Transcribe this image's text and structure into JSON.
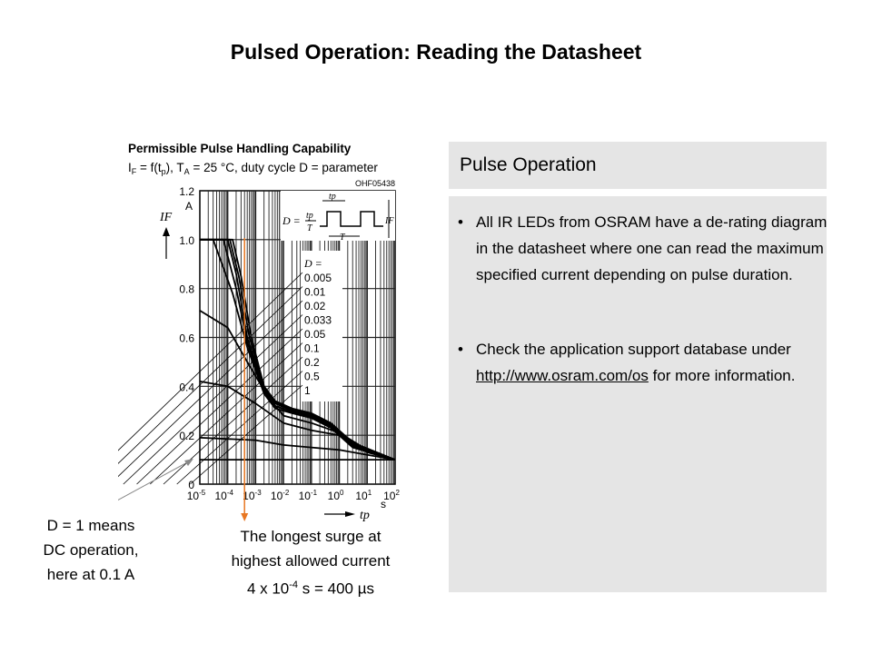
{
  "slide_title": "Pulsed Operation: Reading the Datasheet",
  "chart_data": {
    "type": "line",
    "title": "Permissible Pulse Handling Capability",
    "subtitle": "IF = f(tp), TA = 25 °C, duty cycle D = parameter",
    "subtitle_parts": {
      "i": "I",
      "f": "F",
      "eq": " = f(t",
      "p": "p",
      "mid": "), T",
      "a": "A",
      "rest": " = 25 °C, duty cycle D = parameter"
    },
    "code": "OHF05438",
    "ylabel": "IF",
    "yunit": "A",
    "xlabel": "tp",
    "xunit": "s",
    "xscale": "log",
    "xlim": [
      1e-05,
      100
    ],
    "ylim": [
      0,
      1.2
    ],
    "yticks": [
      "0",
      "0.2",
      "0.4",
      "0.6",
      "0.8",
      "1.0",
      "1.2"
    ],
    "xticks": [
      {
        "base": "10",
        "exp": "-5"
      },
      {
        "base": "10",
        "exp": "-4"
      },
      {
        "base": "10",
        "exp": "-3"
      },
      {
        "base": "10",
        "exp": "-2"
      },
      {
        "base": "10",
        "exp": "-1"
      },
      {
        "base": "10",
        "exp": "0"
      },
      {
        "base": "10",
        "exp": "1"
      },
      {
        "base": "10",
        "exp": "2"
      }
    ],
    "legend_title": "D =",
    "inset_formula": {
      "d": "D =",
      "num": "tp",
      "den": "T",
      "tp": "tp",
      "t": "T",
      "if": "IF"
    },
    "series": [
      {
        "name": "0.005",
        "points": [
          [
            1e-05,
            1.0
          ],
          [
            0.00015,
            1.0
          ],
          [
            0.0003,
            0.85
          ],
          [
            0.0007,
            0.6
          ],
          [
            0.002,
            0.4
          ],
          [
            0.005,
            0.34
          ],
          [
            0.02,
            0.31
          ],
          [
            0.1,
            0.29
          ],
          [
            0.5,
            0.25
          ],
          [
            3,
            0.17
          ],
          [
            100,
            0.1
          ]
        ]
      },
      {
        "name": "0.01",
        "points": [
          [
            1e-05,
            1.0
          ],
          [
            0.00012,
            1.0
          ],
          [
            0.00025,
            0.85
          ],
          [
            0.0006,
            0.6
          ],
          [
            0.002,
            0.4
          ],
          [
            0.005,
            0.335
          ],
          [
            0.02,
            0.305
          ],
          [
            0.1,
            0.285
          ],
          [
            0.5,
            0.245
          ],
          [
            3,
            0.165
          ],
          [
            100,
            0.1
          ]
        ]
      },
      {
        "name": "0.02",
        "points": [
          [
            1e-05,
            1.0
          ],
          [
            0.0001,
            1.0
          ],
          [
            0.0002,
            0.86
          ],
          [
            0.0005,
            0.6
          ],
          [
            0.002,
            0.39
          ],
          [
            0.005,
            0.33
          ],
          [
            0.02,
            0.3
          ],
          [
            0.1,
            0.28
          ],
          [
            0.5,
            0.24
          ],
          [
            3,
            0.16
          ],
          [
            100,
            0.1
          ]
        ]
      },
      {
        "name": "0.033",
        "points": [
          [
            1e-05,
            1.0
          ],
          [
            7e-05,
            1.0
          ],
          [
            0.0002,
            0.8
          ],
          [
            0.0005,
            0.58
          ],
          [
            0.002,
            0.38
          ],
          [
            0.005,
            0.32
          ],
          [
            0.02,
            0.295
          ],
          [
            0.1,
            0.275
          ],
          [
            0.5,
            0.235
          ],
          [
            3,
            0.155
          ],
          [
            100,
            0.1
          ]
        ]
      },
      {
        "name": "0.05",
        "points": [
          [
            1e-05,
            1.0
          ],
          [
            3e-05,
            1.0
          ],
          [
            0.00015,
            0.78
          ],
          [
            0.0005,
            0.56
          ],
          [
            0.002,
            0.37
          ],
          [
            0.005,
            0.31
          ],
          [
            0.02,
            0.29
          ],
          [
            0.1,
            0.27
          ],
          [
            0.5,
            0.23
          ],
          [
            3,
            0.15
          ],
          [
            100,
            0.1
          ]
        ]
      },
      {
        "name": "0.1",
        "points": [
          [
            1e-05,
            0.71
          ],
          [
            0.0001,
            0.64
          ],
          [
            0.0005,
            0.5
          ],
          [
            0.003,
            0.35
          ],
          [
            0.01,
            0.28
          ],
          [
            0.1,
            0.25
          ],
          [
            1,
            0.21
          ],
          [
            10,
            0.14
          ],
          [
            100,
            0.1
          ]
        ]
      },
      {
        "name": "0.2",
        "points": [
          [
            1e-05,
            0.42
          ],
          [
            0.0001,
            0.4
          ],
          [
            0.001,
            0.33
          ],
          [
            0.01,
            0.25
          ],
          [
            0.1,
            0.22
          ],
          [
            1,
            0.2
          ],
          [
            10,
            0.13
          ],
          [
            100,
            0.1
          ]
        ]
      },
      {
        "name": "0.5",
        "points": [
          [
            1e-05,
            0.19
          ],
          [
            0.001,
            0.18
          ],
          [
            0.01,
            0.16
          ],
          [
            0.1,
            0.15
          ],
          [
            1,
            0.14
          ],
          [
            10,
            0.12
          ],
          [
            100,
            0.1
          ]
        ]
      },
      {
        "name": "1",
        "points": [
          [
            1e-05,
            0.1
          ],
          [
            100,
            0.1
          ]
        ]
      }
    ],
    "marker_tp": 0.0004,
    "accent": "#e87722"
  },
  "annotations": {
    "dc": [
      "D = 1 means",
      "DC operation,",
      "here at 0.1 A"
    ],
    "surge": [
      "The longest surge at",
      "highest allowed current"
    ],
    "surge_formula": {
      "pre": "4 x 10",
      "exp": "-4",
      "post": " s = 400 µs"
    }
  },
  "panel": {
    "title": "Pulse Operation",
    "bullets": [
      {
        "text": "All IR LEDs from OSRAM have a de-rating diagram in the datasheet where one can read the maximum  specified current depending  on pulse duration."
      },
      {
        "pre": "Check the application support database under ",
        "link": "http://www.osram.com/os",
        "post": "  for more information."
      }
    ],
    "bullet_char": "•"
  }
}
